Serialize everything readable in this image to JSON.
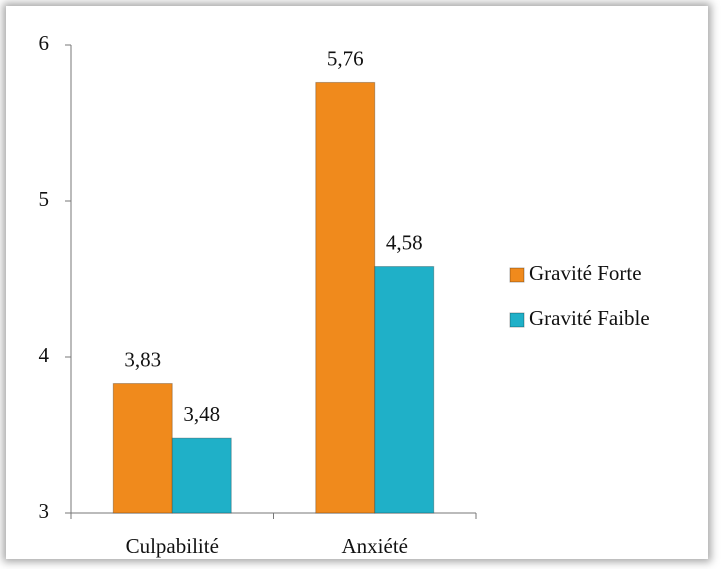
{
  "chart_data": {
    "type": "bar",
    "categories": [
      "Culpabilité",
      "Anxiété"
    ],
    "series": [
      {
        "name": "Gravité Forte",
        "color": "#f08a1c",
        "values": [
          3.83,
          5.76
        ],
        "value_labels": [
          "3,83",
          "5,76"
        ]
      },
      {
        "name": "Gravité Faible",
        "color": "#1fb0c8",
        "values": [
          3.48,
          4.58
        ],
        "value_labels": [
          "3,48",
          "4,58"
        ]
      }
    ],
    "ylim": [
      3,
      6
    ],
    "yticks": [
      3,
      4,
      5,
      6
    ],
    "grid": false,
    "legend": "right"
  }
}
